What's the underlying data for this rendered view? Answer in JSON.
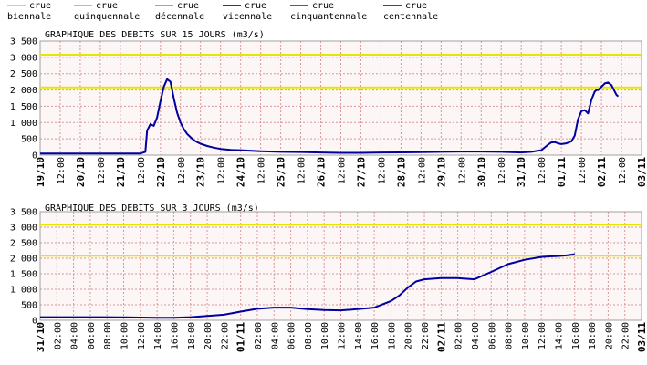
{
  "legend": [
    {
      "line1": "crue",
      "line2": "biennale",
      "color": "#e6e600"
    },
    {
      "line1": "crue",
      "line2": "quinquennale",
      "color": "#e6c800"
    },
    {
      "line1": "crue",
      "line2": "décennale",
      "color": "#e6a000"
    },
    {
      "line1": "crue",
      "line2": "vicennale",
      "color": "#cc0000"
    },
    {
      "line1": "crue",
      "line2": "cinquantennale",
      "color": "#e600c8"
    },
    {
      "line1": "crue",
      "line2": "centennale",
      "color": "#a000c8"
    }
  ],
  "colors": {
    "series": "#0000a0",
    "threshold": "#e6e600",
    "grid": "#d89898",
    "plot_bg": "#fcf6f6"
  },
  "chart_data": [
    {
      "type": "line",
      "title": "GRAPHIQUE DES DEBITS SUR 15 JOURS (m3/s)",
      "ylim": [
        0,
        3500
      ],
      "yticks": [
        0,
        500,
        1000,
        1500,
        2000,
        2500,
        3000,
        3500
      ],
      "ytick_labels": [
        "0",
        "500",
        "1 000",
        "1 500",
        "2 000",
        "2 500",
        "3 000",
        "3 500"
      ],
      "xlim": [
        0,
        360
      ],
      "x_unit": "hours from 19/10 00:00",
      "xticks": [
        0,
        12,
        24,
        36,
        48,
        60,
        72,
        84,
        96,
        108,
        120,
        132,
        144,
        156,
        168,
        180,
        192,
        204,
        216,
        228,
        240,
        252,
        264,
        276,
        288,
        300,
        312,
        324,
        336,
        348,
        360
      ],
      "xtick_labels": [
        "19/10",
        "12:00",
        "20/10",
        "12:00",
        "21/10",
        "12:00",
        "22/10",
        "12:00",
        "23/10",
        "12:00",
        "24/10",
        "12:00",
        "25/10",
        "12:00",
        "26/10",
        "12:00",
        "27/10",
        "12:00",
        "28/10",
        "12:00",
        "29/10",
        "12:00",
        "30/10",
        "12:00",
        "31/10",
        "12:00",
        "01/11",
        "12:00",
        "02/11",
        "12:00",
        "03/11"
      ],
      "xtick_bold": [
        true,
        false,
        true,
        false,
        true,
        false,
        true,
        false,
        true,
        false,
        true,
        false,
        true,
        false,
        true,
        false,
        true,
        false,
        true,
        false,
        true,
        false,
        true,
        false,
        true,
        false,
        true,
        false,
        true,
        false,
        true
      ],
      "thresholds": [
        2080,
        3080
      ],
      "x": [
        0,
        60,
        63,
        64,
        66,
        68,
        70,
        72,
        74,
        76,
        78,
        80,
        82,
        84,
        86,
        88,
        90,
        92,
        94,
        96,
        100,
        104,
        108,
        114,
        120,
        132,
        144,
        156,
        168,
        180,
        192,
        204,
        216,
        228,
        240,
        252,
        264,
        276,
        288,
        294,
        300,
        304,
        306,
        308,
        310,
        312,
        315,
        318,
        320,
        322,
        324,
        326,
        328,
        330,
        332,
        333,
        334,
        336,
        338,
        340,
        342,
        344,
        345,
        346
      ],
      "y": [
        50,
        50,
        100,
        750,
        950,
        900,
        1150,
        1650,
        2100,
        2330,
        2250,
        1750,
        1300,
        1000,
        800,
        650,
        550,
        460,
        400,
        350,
        280,
        230,
        190,
        160,
        150,
        120,
        100,
        95,
        80,
        70,
        70,
        80,
        85,
        90,
        100,
        110,
        110,
        100,
        80,
        100,
        150,
        320,
        390,
        400,
        360,
        340,
        360,
        420,
        600,
        1100,
        1350,
        1380,
        1280,
        1700,
        1950,
        2000,
        2000,
        2100,
        2200,
        2230,
        2150,
        1950,
        1850,
        1800
      ]
    },
    {
      "type": "line",
      "title": "GRAPHIQUE DES DEBITS SUR 3 JOURS (m3/s)",
      "ylim": [
        0,
        3500
      ],
      "yticks": [
        0,
        500,
        1000,
        1500,
        2000,
        2500,
        3000,
        3500
      ],
      "ytick_labels": [
        "0",
        "500",
        "1 000",
        "1 500",
        "2 000",
        "2 500",
        "3 000",
        "3 500"
      ],
      "xlim": [
        0,
        72
      ],
      "x_unit": "hours from 31/10 00:00",
      "xticks": [
        0,
        2,
        4,
        6,
        8,
        10,
        12,
        14,
        16,
        18,
        20,
        22,
        24,
        26,
        28,
        30,
        32,
        34,
        36,
        38,
        40,
        42,
        44,
        46,
        48,
        50,
        52,
        54,
        56,
        58,
        60,
        62,
        64,
        66,
        68,
        70,
        72
      ],
      "xtick_labels": [
        "31/10",
        "02:00",
        "04:00",
        "06:00",
        "08:00",
        "10:00",
        "12:00",
        "14:00",
        "16:00",
        "18:00",
        "20:00",
        "22:00",
        "01/11",
        "02:00",
        "04:00",
        "06:00",
        "08:00",
        "10:00",
        "12:00",
        "14:00",
        "16:00",
        "18:00",
        "20:00",
        "22:00",
        "02/11",
        "02:00",
        "04:00",
        "06:00",
        "08:00",
        "10:00",
        "12:00",
        "14:00",
        "16:00",
        "18:00",
        "20:00",
        "22:00",
        "03/11"
      ],
      "xtick_bold": [
        true,
        false,
        false,
        false,
        false,
        false,
        false,
        false,
        false,
        false,
        false,
        false,
        true,
        false,
        false,
        false,
        false,
        false,
        false,
        false,
        false,
        false,
        false,
        false,
        true,
        false,
        false,
        false,
        false,
        false,
        false,
        false,
        false,
        false,
        false,
        false,
        true
      ],
      "thresholds": [
        2080,
        3080
      ],
      "x": [
        0,
        8,
        10,
        14,
        16,
        18,
        20,
        22,
        24,
        26,
        28,
        30,
        32,
        34,
        36,
        38,
        40,
        42,
        43,
        44,
        45,
        46,
        48,
        50,
        52,
        54,
        56,
        58,
        60,
        61,
        62,
        63,
        64
      ],
      "y": [
        100,
        100,
        95,
        80,
        80,
        100,
        140,
        180,
        280,
        370,
        410,
        410,
        360,
        330,
        320,
        360,
        410,
        620,
        800,
        1050,
        1250,
        1320,
        1360,
        1360,
        1320,
        1560,
        1810,
        1950,
        2040,
        2060,
        2070,
        2090,
        2130
      ]
    }
  ]
}
